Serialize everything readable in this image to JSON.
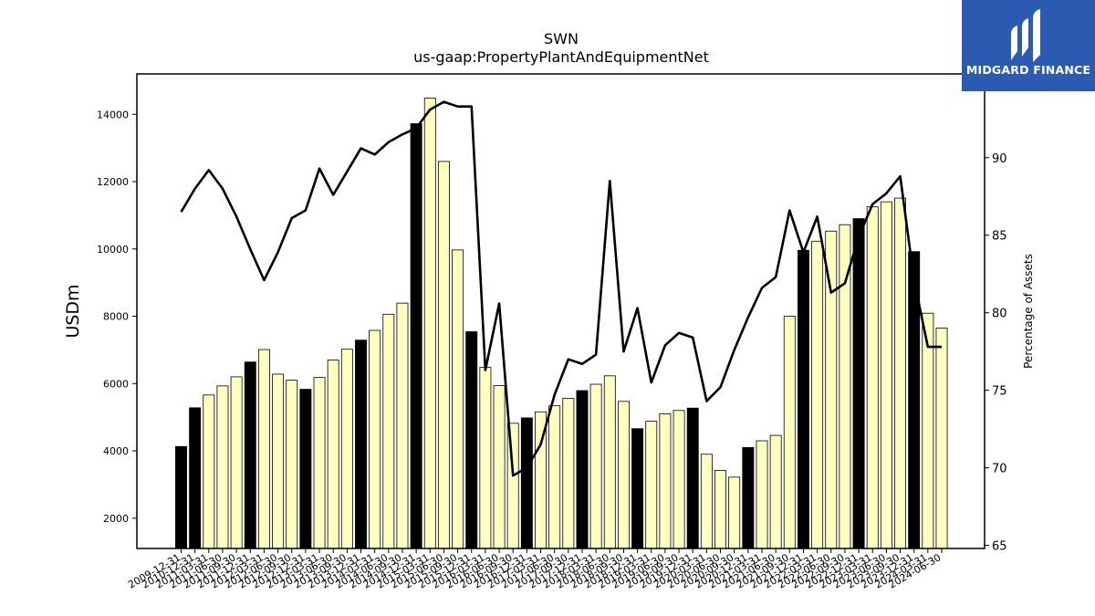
{
  "chart_data": {
    "type": "bar",
    "title": "SWN",
    "subtitle": "us-gaap:PropertyPlantAndEquipmentNet",
    "ylabel": "USDm",
    "y2label": "Percentage of Assets",
    "ylim": [
      1100,
      15200
    ],
    "y2lim": [
      64.8,
      95.4
    ],
    "yticks": [
      2000,
      4000,
      6000,
      8000,
      10000,
      12000,
      14000
    ],
    "y2ticks": [
      65,
      70,
      75,
      80,
      85,
      90
    ],
    "categories": [
      "2009-12-31",
      "2010-12-31",
      "2011-03-31",
      "2011-06-30",
      "2011-09-30",
      "2011-12-31",
      "2012-03-31",
      "2012-06-30",
      "2012-09-30",
      "2012-12-31",
      "2013-03-31",
      "2013-06-30",
      "2013-09-30",
      "2013-12-31",
      "2014-03-31",
      "2014-06-30",
      "2014-09-30",
      "2014-12-31",
      "2015-03-31",
      "2015-06-30",
      "2015-09-30",
      "2015-12-31",
      "2016-03-31",
      "2016-06-30",
      "2016-09-30",
      "2016-12-31",
      "2017-03-31",
      "2017-06-30",
      "2017-09-30",
      "2017-12-31",
      "2018-03-31",
      "2018-06-30",
      "2018-09-30",
      "2018-12-31",
      "2019-03-31",
      "2019-06-30",
      "2019-09-30",
      "2019-12-31",
      "2020-03-31",
      "2020-06-30",
      "2020-09-30",
      "2020-12-31",
      "2021-03-31",
      "2021-06-30",
      "2021-09-30",
      "2021-12-31",
      "2022-03-31",
      "2022-06-30",
      "2022-09-30",
      "2022-12-31",
      "2023-03-31",
      "2023-06-30",
      "2023-09-30",
      "2023-12-31",
      "2024-03-31",
      "2024-06-30"
    ],
    "series": [
      {
        "kind": "bar",
        "values": [
          4130,
          5280,
          5660,
          5930,
          6200,
          6640,
          7010,
          6280,
          6100,
          5830,
          6180,
          6700,
          7020,
          7290,
          7580,
          8060,
          8390,
          13720,
          14480,
          12600,
          9970,
          7540,
          6480,
          5940,
          4820,
          4980,
          5160,
          5340,
          5560,
          5790,
          5980,
          6230,
          5470,
          4660,
          4880,
          5100,
          5200,
          5270,
          3900,
          3420,
          3220,
          4100,
          4300,
          4460,
          8000,
          9960,
          10230,
          10530,
          10720,
          10900,
          11250,
          11400,
          11510,
          9920,
          8090,
          7650
        ],
        "annual_flags": [
          1,
          1,
          0,
          0,
          0,
          1,
          0,
          0,
          0,
          1,
          0,
          0,
          0,
          1,
          0,
          0,
          0,
          1,
          0,
          0,
          0,
          1,
          0,
          0,
          0,
          1,
          0,
          0,
          0,
          1,
          0,
          0,
          0,
          1,
          0,
          0,
          0,
          1,
          0,
          0,
          0,
          1,
          0,
          0,
          0,
          1,
          0,
          0,
          0,
          1,
          0,
          0,
          0,
          1,
          0,
          0
        ]
      },
      {
        "kind": "line",
        "axis": "right",
        "values": [
          86.5,
          88.0,
          89.2,
          88.0,
          86.2,
          84.1,
          82.1,
          83.9,
          86.1,
          86.6,
          89.3,
          87.6,
          89.1,
          90.6,
          90.2,
          91.0,
          91.5,
          91.9,
          93.1,
          93.6,
          93.3,
          93.3,
          76.3,
          80.6,
          69.5,
          70.0,
          71.5,
          74.7,
          77.0,
          76.7,
          77.3,
          88.5,
          77.5,
          80.3,
          75.5,
          77.9,
          78.7,
          78.4,
          74.3,
          75.2,
          77.6,
          79.7,
          81.6,
          82.3,
          86.6,
          83.9,
          86.2,
          81.3,
          81.9,
          84.9,
          87.0,
          87.7,
          88.8,
          82.1,
          77.8,
          77.8
        ]
      }
    ],
    "colors": {
      "annual_bar": "#000000",
      "quarter_bar": "#ffffc0",
      "bar_edge": "#000000",
      "line": "#000000"
    }
  },
  "logo": {
    "text": "MIDGARD FINANCE",
    "bg": "#2b5bb0"
  }
}
